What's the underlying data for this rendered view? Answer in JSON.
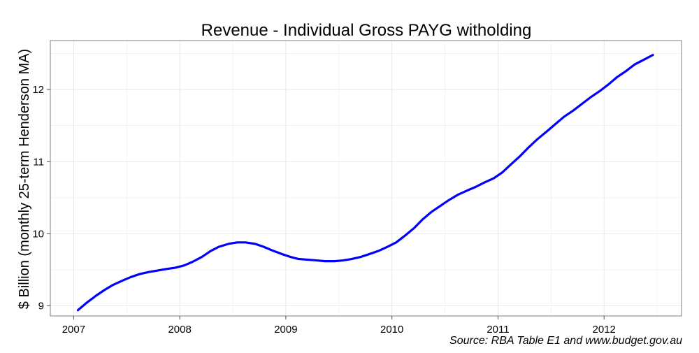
{
  "chart_data": {
    "type": "line",
    "title": "Revenue - Individual Gross PAYG witholding",
    "xlabel": "",
    "ylabel": "$ Billion (monthly 25-term Henderson MA)",
    "caption": "Source: RBA Table E1 and www.budget.gov.au",
    "xlim": [
      2006.78,
      2012.73
    ],
    "ylim": [
      8.86,
      12.68
    ],
    "x_ticks": [
      2007,
      2008,
      2009,
      2010,
      2011,
      2012
    ],
    "x_tick_labels": [
      "2007",
      "2008",
      "2009",
      "2010",
      "2011",
      "2012"
    ],
    "y_ticks": [
      9,
      10,
      11,
      12
    ],
    "y_tick_labels": [
      "9",
      "10",
      "11",
      "12"
    ],
    "grid": true,
    "colors": {
      "line": "#0000ff",
      "grid": "#e6e6e6",
      "panel_border": "#7f7f7f"
    },
    "series": [
      {
        "x": [
          2007.04,
          2007.12,
          2007.21,
          2007.29,
          2007.37,
          2007.46,
          2007.54,
          2007.62,
          2007.71,
          2007.79,
          2007.87,
          2007.96,
          2008.04,
          2008.12,
          2008.21,
          2008.29,
          2008.37,
          2008.46,
          2008.54,
          2008.62,
          2008.71,
          2008.79,
          2008.87,
          2008.96,
          2009.04,
          2009.12,
          2009.21,
          2009.29,
          2009.37,
          2009.46,
          2009.54,
          2009.62,
          2009.71,
          2009.79,
          2009.87,
          2009.96,
          2010.04,
          2010.12,
          2010.21,
          2010.29,
          2010.37,
          2010.46,
          2010.54,
          2010.62,
          2010.71,
          2010.79,
          2010.87,
          2010.96,
          2011.04,
          2011.12,
          2011.21,
          2011.29,
          2011.37,
          2011.46,
          2011.54,
          2011.62,
          2011.71,
          2011.79,
          2011.87,
          2011.96,
          2012.04,
          2012.12,
          2012.21,
          2012.29,
          2012.37,
          2012.46
        ],
        "values": [
          8.94,
          9.04,
          9.14,
          9.22,
          9.29,
          9.35,
          9.4,
          9.44,
          9.47,
          9.49,
          9.51,
          9.53,
          9.56,
          9.61,
          9.68,
          9.76,
          9.82,
          9.86,
          9.88,
          9.88,
          9.86,
          9.82,
          9.77,
          9.72,
          9.68,
          9.65,
          9.64,
          9.63,
          9.62,
          9.62,
          9.63,
          9.65,
          9.68,
          9.72,
          9.76,
          9.82,
          9.88,
          9.97,
          10.08,
          10.2,
          10.3,
          10.39,
          10.47,
          10.54,
          10.6,
          10.65,
          10.71,
          10.77,
          10.85,
          10.96,
          11.08,
          11.2,
          11.31,
          11.42,
          11.52,
          11.62,
          11.71,
          11.8,
          11.89,
          11.98,
          12.07,
          12.17,
          12.26,
          12.35,
          12.41,
          12.48
        ]
      }
    ]
  }
}
